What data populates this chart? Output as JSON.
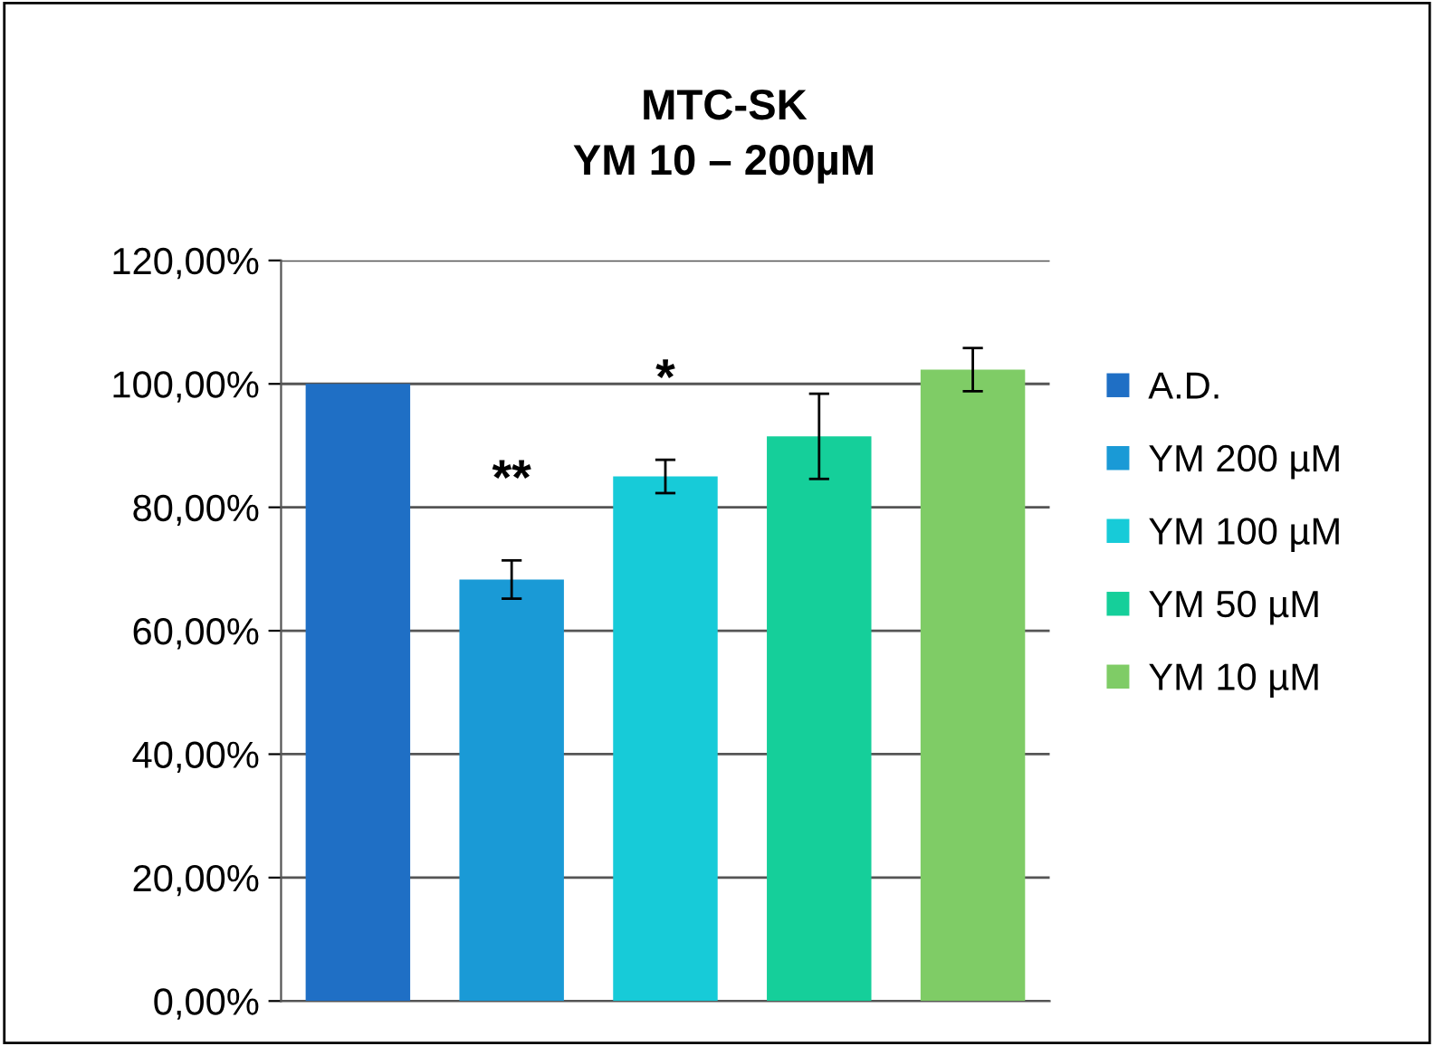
{
  "chart_data": {
    "type": "bar",
    "title": "MTC-SK\nYM 10 – 200µM",
    "categories": [
      null,
      null,
      null,
      null,
      null
    ],
    "series": [
      {
        "name": "A.D.",
        "color": "#1f6fc5",
        "values": [
          100,
          null,
          null,
          null,
          null
        ]
      },
      {
        "name": "YM 200 µM",
        "color": "#1a9ad6",
        "values": [
          null,
          68.3,
          null,
          null,
          null
        ],
        "errors": [
          null,
          3.1,
          null,
          null,
          null
        ],
        "value_labels": [
          null,
          "**",
          null,
          null,
          null
        ]
      },
      {
        "name": "YM 100 µM",
        "color": "#17cbd8",
        "values": [
          null,
          null,
          85.0,
          null,
          null
        ],
        "errors": [
          null,
          null,
          2.7,
          null,
          null
        ],
        "value_labels": [
          null,
          null,
          "*",
          null,
          null
        ]
      },
      {
        "name": "YM 50 µM",
        "color": "#15cf9a",
        "values": [
          null,
          null,
          null,
          91.5,
          null
        ],
        "errors": [
          null,
          null,
          null,
          6.9,
          null
        ]
      },
      {
        "name": "YM 10 µM",
        "color": "#7fcc66",
        "values": [
          null,
          null,
          null,
          null,
          102.3
        ],
        "errors": [
          null,
          null,
          null,
          null,
          3.5
        ]
      }
    ],
    "ylim": [
      0,
      120
    ],
    "yticks": [
      {
        "value": 0,
        "label": "0,00%"
      },
      {
        "value": 20,
        "label": "20,00%"
      },
      {
        "value": 40,
        "label": "40,00%"
      },
      {
        "value": 60,
        "label": "60,00%"
      },
      {
        "value": 80,
        "label": "80,00%"
      },
      {
        "value": 100,
        "label": "100,00%"
      },
      {
        "value": 120,
        "label": "120,00%"
      }
    ],
    "grid": "y",
    "legend": "right"
  }
}
